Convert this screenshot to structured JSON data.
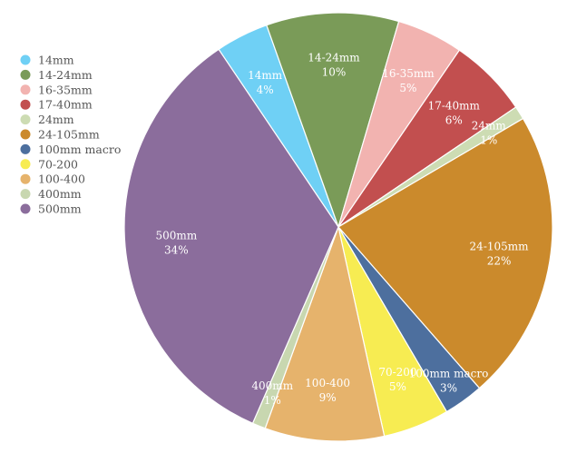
{
  "chart_data": {
    "type": "pie",
    "legend_position": "left",
    "slices": [
      {
        "label": "14mm",
        "value": 4,
        "value_label": "4%",
        "color": "#6fd0f5"
      },
      {
        "label": "14-24mm",
        "value": 10,
        "value_label": "10%",
        "color": "#7a9b58"
      },
      {
        "label": "16-35mm",
        "value": 5,
        "value_label": "5%",
        "color": "#f2b3b0"
      },
      {
        "label": "17-40mm",
        "value": 6,
        "value_label": "6%",
        "color": "#c24f4f"
      },
      {
        "label": "24mm",
        "value": 1,
        "value_label": "1%",
        "color": "#cddcb3"
      },
      {
        "label": "24-105mm",
        "value": 22,
        "value_label": "22%",
        "color": "#cb8a2c"
      },
      {
        "label": "100mm macro",
        "value": 3,
        "value_label": "3%",
        "color": "#4d6f9e"
      },
      {
        "label": "70-200",
        "value": 5,
        "value_label": "5%",
        "color": "#f7ec52"
      },
      {
        "label": "100-400",
        "value": 9,
        "value_label": "9%",
        "color": "#e6b36c"
      },
      {
        "label": "400mm",
        "value": 1,
        "value_label": "1%",
        "color": "#c8d7b0"
      },
      {
        "label": "500mm",
        "value": 34,
        "value_label": "34%",
        "color": "#8b6d9c"
      }
    ]
  }
}
